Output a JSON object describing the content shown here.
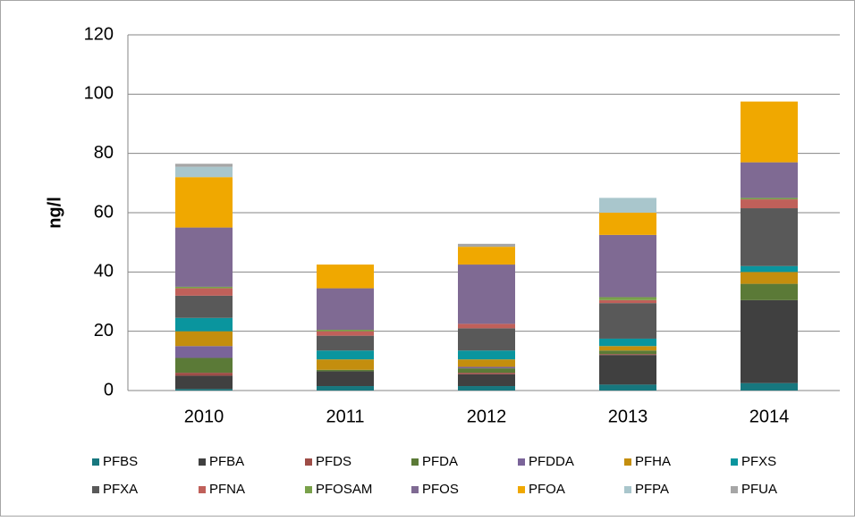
{
  "chart_data": {
    "type": "stacked_bar",
    "y_label": "ng/l",
    "categories": [
      "2010",
      "2011",
      "2012",
      "2013",
      "2014"
    ],
    "ylim": [
      0,
      120
    ],
    "yticks": [
      0,
      20,
      40,
      60,
      80,
      100,
      120
    ],
    "grid": true,
    "series": [
      {
        "name": "PFBS",
        "color": "#17777e",
        "values": [
          0.5,
          1.5,
          1.5,
          2,
          2.5
        ]
      },
      {
        "name": "PFBA",
        "color": "#404040",
        "values": [
          4.5,
          5,
          4,
          10,
          28
        ]
      },
      {
        "name": "PFDS",
        "color": "#9e4d47",
        "values": [
          1,
          0,
          0.5,
          0.3,
          0
        ]
      },
      {
        "name": "PFDA",
        "color": "#5b7a37",
        "values": [
          5,
          0.5,
          1.5,
          1.2,
          5.5
        ]
      },
      {
        "name": "PFDDA",
        "color": "#7a6499",
        "values": [
          4,
          0,
          0.5,
          0,
          0
        ]
      },
      {
        "name": "PFHA",
        "color": "#c48e0e",
        "values": [
          5,
          3.5,
          2.5,
          1.5,
          4
        ]
      },
      {
        "name": "PFXS",
        "color": "#0a959e",
        "values": [
          4.5,
          3,
          3,
          2.5,
          2
        ]
      },
      {
        "name": "PFXA",
        "color": "#595959",
        "values": [
          7.5,
          5,
          7.5,
          12,
          19.5
        ]
      },
      {
        "name": "PFNA",
        "color": "#c0605a",
        "values": [
          2.5,
          1.5,
          1.5,
          1,
          3
        ]
      },
      {
        "name": "PFOSAM",
        "color": "#79a14a",
        "values": [
          0.5,
          0.5,
          0,
          1,
          0.5
        ]
      },
      {
        "name": "PFOS",
        "color": "#7f6a93",
        "values": [
          20,
          14,
          20,
          21,
          12
        ]
      },
      {
        "name": "PFOA",
        "color": "#f0a800",
        "values": [
          17,
          8,
          6,
          7.5,
          20.5
        ]
      },
      {
        "name": "PFPA",
        "color": "#a9c6cc",
        "values": [
          3.5,
          0,
          0,
          5,
          0
        ]
      },
      {
        "name": "PFUA",
        "color": "#a6a6a6",
        "values": [
          1,
          0,
          1,
          0,
          0
        ]
      }
    ]
  }
}
